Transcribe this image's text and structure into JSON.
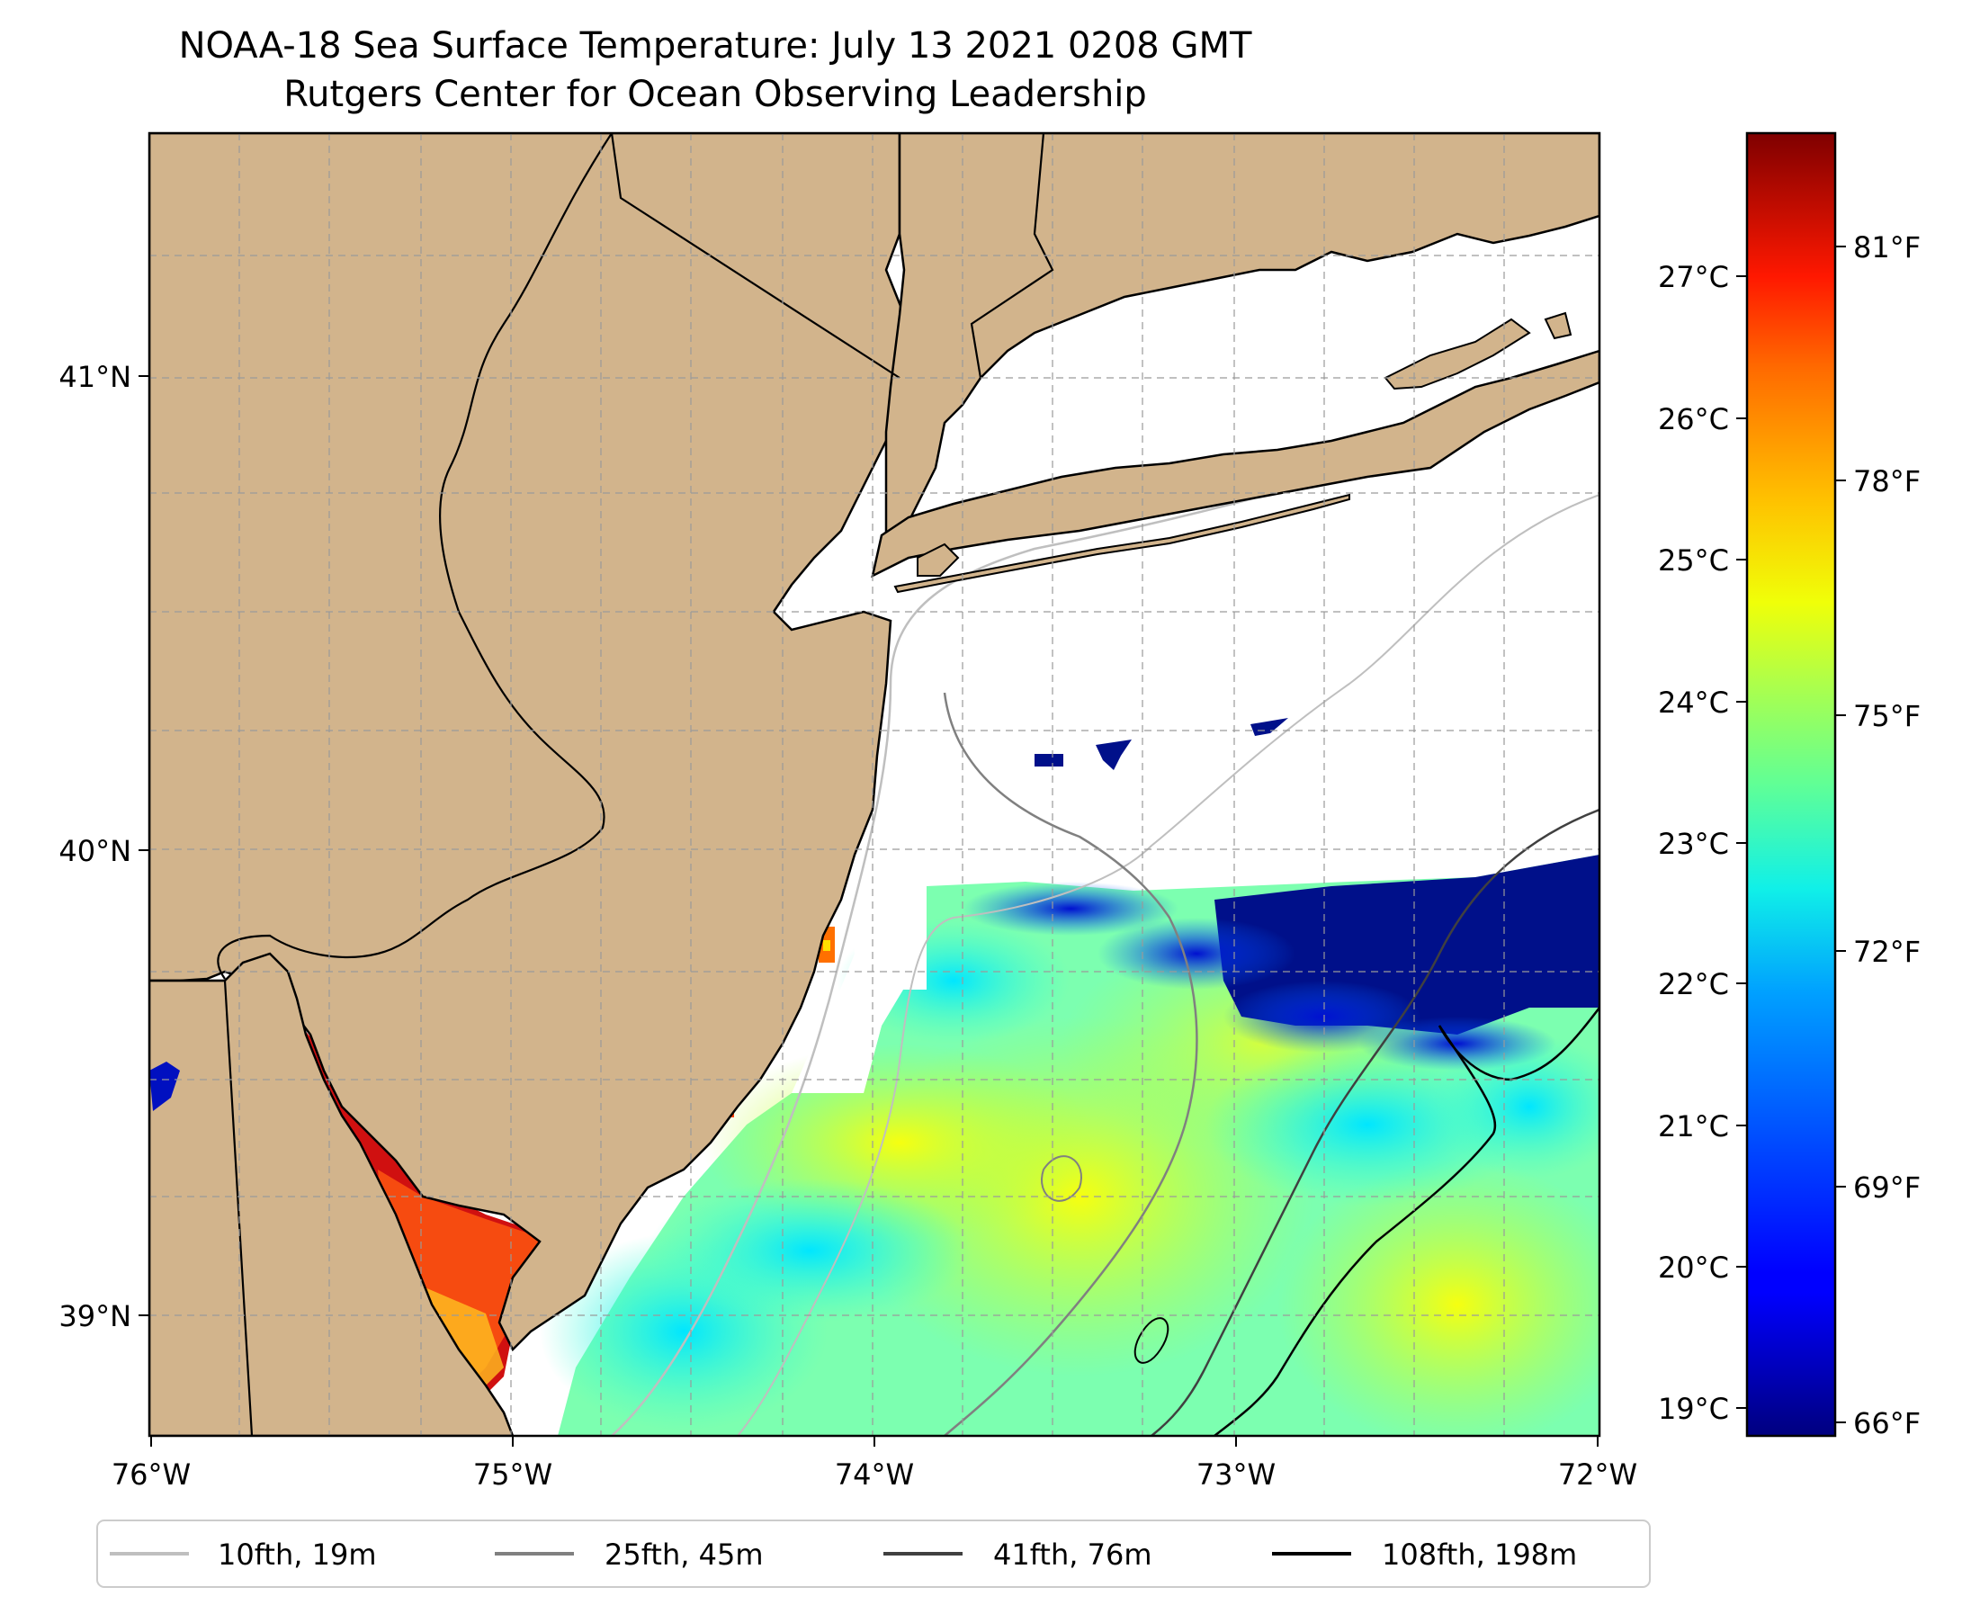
{
  "title": "NOAA-18 Sea Surface Temperature: July 13 2021 0208 GMT",
  "subtitle": "Rutgers Center for Ocean Observing Leadership",
  "map": {
    "lon_range": [
      -76,
      -72
    ],
    "lat_range": [
      38.8,
      41.5
    ],
    "x_ticks": [
      "76°W",
      "75°W",
      "74°W",
      "73°W",
      "72°W"
    ],
    "y_ticks": [
      "41°N",
      "40°N",
      "39°N"
    ],
    "land_color": "#d2b48c",
    "no_data_color": "#ffffff",
    "grid": true
  },
  "colorbar": {
    "colormap": "jet",
    "celsius_ticks": [
      "19°C",
      "20°C",
      "21°C",
      "22°C",
      "23°C",
      "24°C",
      "25°C",
      "26°C",
      "27°C"
    ],
    "fahrenheit_ticks": [
      "66°F",
      "69°F",
      "72°F",
      "75°F",
      "78°F",
      "81°F"
    ],
    "range_celsius": [
      18.9,
      27.9
    ]
  },
  "legend": {
    "items": [
      {
        "label": "10fth, 19m",
        "color": "#bfbfbf"
      },
      {
        "label": "25fth, 45m",
        "color": "#808080"
      },
      {
        "label": "41fth, 76m",
        "color": "#404040"
      },
      {
        "label": "108fth, 198m",
        "color": "#000000"
      }
    ]
  }
}
